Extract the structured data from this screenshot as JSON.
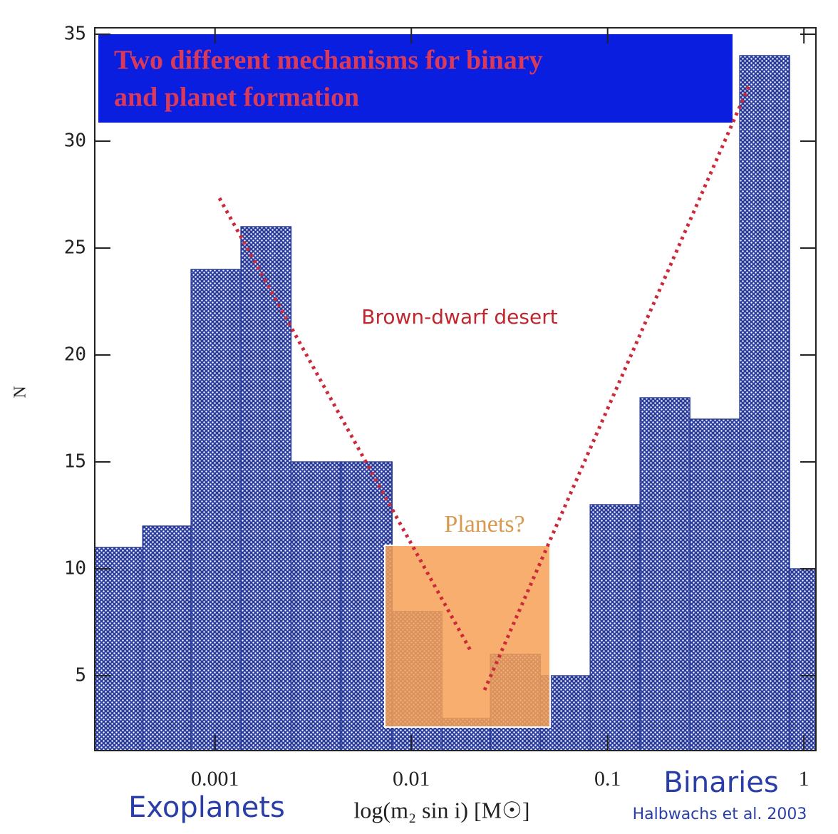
{
  "chart_data": {
    "type": "histogram",
    "title": [
      "Two different mechanisms for binary",
      "and planet formation"
    ],
    "bins": [
      0.000244,
      0.000428,
      0.000755,
      0.001355,
      0.00244,
      0.00438,
      0.00798,
      0.01432,
      0.0253,
      0.0454,
      0.0815,
      0.1463,
      0.2624,
      0.471,
      0.845,
      1.151
    ],
    "counts": [
      11,
      12,
      24,
      26,
      15,
      15,
      8,
      3,
      6,
      5,
      13,
      18,
      17,
      34,
      10
    ],
    "color": "#2b3d9c",
    "xlim": [
      0.000244,
      1.151
    ],
    "log_x": true,
    "xticks": [
      0.001,
      0.01,
      0.1,
      1
    ],
    "ylim": [
      1.5,
      35.3
    ],
    "yticks": [
      5,
      10,
      15,
      20,
      25,
      30,
      35
    ],
    "xlabel": "log(m₂ sin i) [M☉]",
    "ylabel": "N",
    "annotations": [
      "Brown-dwarf desert",
      "Planets?",
      "Exoplanets",
      "Binaries",
      "Halbwachs et al. 2003"
    ]
  }
}
